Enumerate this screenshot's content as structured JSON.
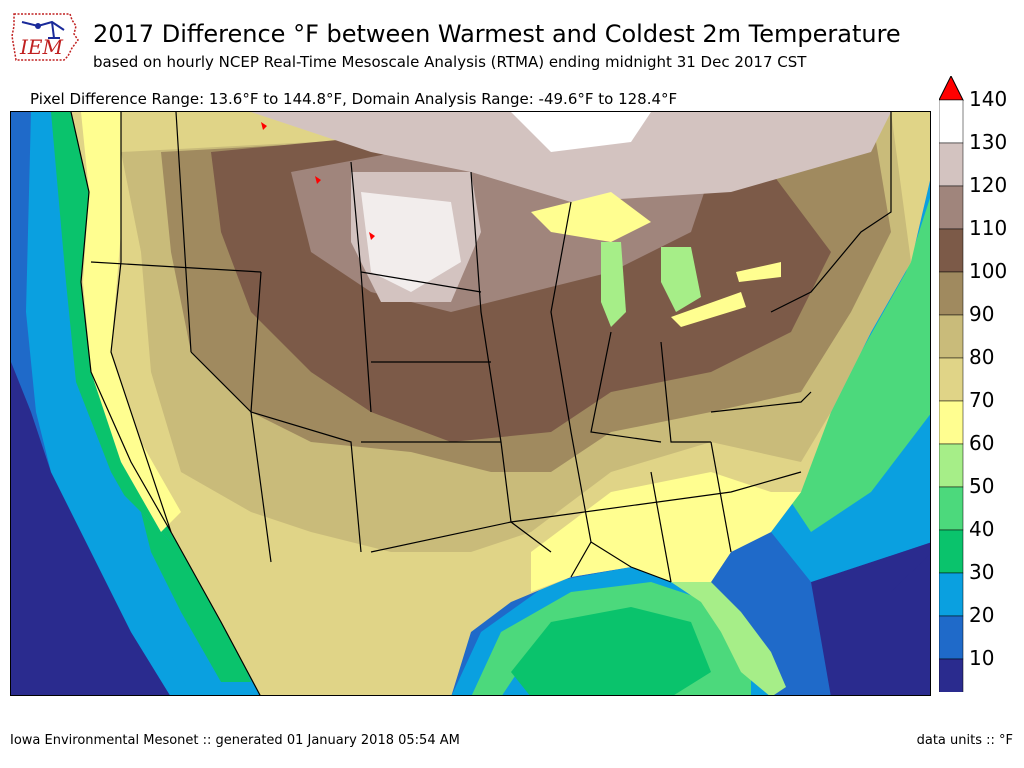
{
  "header": {
    "logo_text": "IEM",
    "title": "2017 Difference °F between Warmest and Coldest 2m Temperature",
    "subtitle": "based on hourly NCEP Real-Time Mesoscale Analysis (RTMA) ending midnight 31 Dec 2017 CST",
    "range_line": "Pixel Difference Range: 13.6°F to 144.8°F, Domain Analysis Range: -49.6°F to 128.4°F"
  },
  "colorbar": {
    "levels": [
      "10",
      "20",
      "30",
      "40",
      "50",
      "60",
      "70",
      "80",
      "90",
      "100",
      "110",
      "120",
      "130",
      "140"
    ],
    "colors": [
      "#2a2b8e",
      "#1f6ac9",
      "#0aa0e0",
      "#0ac36c",
      "#4cd97c",
      "#a6ee88",
      "#fffe90",
      "#e0d487",
      "#c9bb7a",
      "#a08a5f",
      "#7c5a48",
      "#a0857c",
      "#d3c3c0",
      "#ffffff"
    ],
    "over_color": "#ff0000",
    "under_color": "#000000"
  },
  "footer": {
    "left": "Iowa Environmental Mesonet :: generated 01 January 2018 05:54 AM",
    "right": "data units :: °F"
  }
}
